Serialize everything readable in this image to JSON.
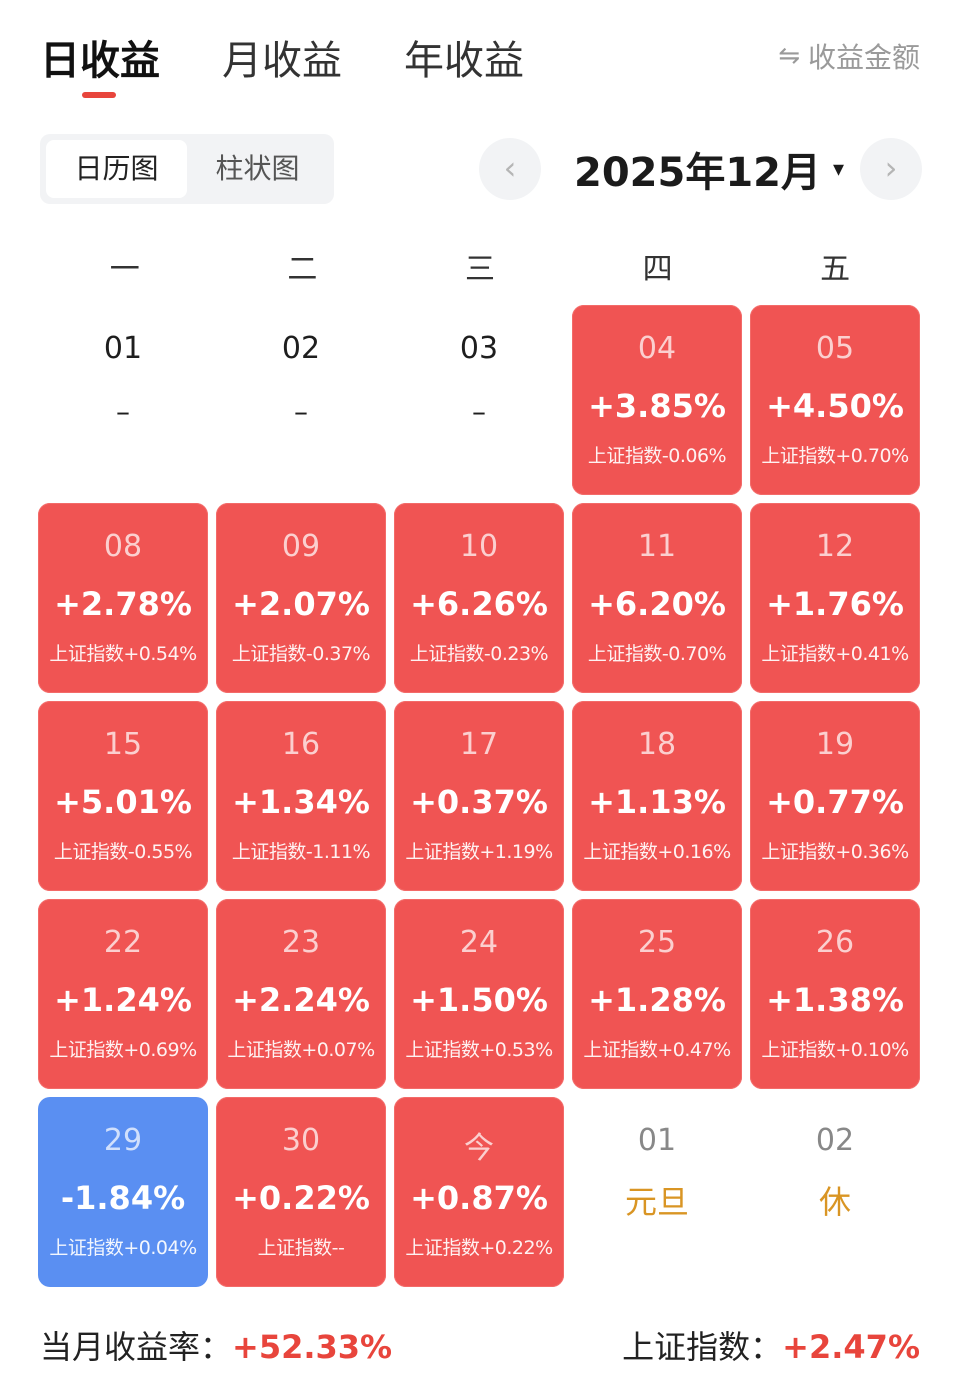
{
  "tabs": [
    {
      "label": "日收益",
      "active": true
    },
    {
      "label": "月收益",
      "active": false
    },
    {
      "label": "年收益",
      "active": false
    }
  ],
  "amount_toggle": {
    "icon": "swap-icon",
    "label": "收益金额"
  },
  "view_switch": [
    {
      "label": "日历图",
      "active": true
    },
    {
      "label": "柱状图",
      "active": false
    }
  ],
  "month": {
    "label": "2025年12月",
    "prev_icon": "‹",
    "next_icon": "›",
    "caret": "▾"
  },
  "weekdays": [
    "一",
    "二",
    "三",
    "四",
    "五"
  ],
  "cells": [
    {
      "date": "01",
      "type": "empty",
      "dash": "–"
    },
    {
      "date": "02",
      "type": "empty",
      "dash": "–"
    },
    {
      "date": "03",
      "type": "empty",
      "dash": "–"
    },
    {
      "date": "04",
      "type": "up",
      "ret": "+3.85%",
      "idx": "上证指数-0.06%"
    },
    {
      "date": "05",
      "type": "up",
      "ret": "+4.50%",
      "idx": "上证指数+0.70%"
    },
    {
      "date": "08",
      "type": "up",
      "ret": "+2.78%",
      "idx": "上证指数+0.54%"
    },
    {
      "date": "09",
      "type": "up",
      "ret": "+2.07%",
      "idx": "上证指数-0.37%"
    },
    {
      "date": "10",
      "type": "up",
      "ret": "+6.26%",
      "idx": "上证指数-0.23%"
    },
    {
      "date": "11",
      "type": "up",
      "ret": "+6.20%",
      "idx": "上证指数-0.70%"
    },
    {
      "date": "12",
      "type": "up",
      "ret": "+1.76%",
      "idx": "上证指数+0.41%"
    },
    {
      "date": "15",
      "type": "up",
      "ret": "+5.01%",
      "idx": "上证指数-0.55%"
    },
    {
      "date": "16",
      "type": "up",
      "ret": "+1.34%",
      "idx": "上证指数-1.11%"
    },
    {
      "date": "17",
      "type": "up",
      "ret": "+0.37%",
      "idx": "上证指数+1.19%"
    },
    {
      "date": "18",
      "type": "up",
      "ret": "+1.13%",
      "idx": "上证指数+0.16%"
    },
    {
      "date": "19",
      "type": "up",
      "ret": "+0.77%",
      "idx": "上证指数+0.36%"
    },
    {
      "date": "22",
      "type": "up",
      "ret": "+1.24%",
      "idx": "上证指数+0.69%"
    },
    {
      "date": "23",
      "type": "up",
      "ret": "+2.24%",
      "idx": "上证指数+0.07%"
    },
    {
      "date": "24",
      "type": "up",
      "ret": "+1.50%",
      "idx": "上证指数+0.53%"
    },
    {
      "date": "25",
      "type": "up",
      "ret": "+1.28%",
      "idx": "上证指数+0.47%"
    },
    {
      "date": "26",
      "type": "up",
      "ret": "+1.38%",
      "idx": "上证指数+0.10%"
    },
    {
      "date": "29",
      "type": "down",
      "ret": "-1.84%",
      "idx": "上证指数+0.04%"
    },
    {
      "date": "30",
      "type": "up",
      "ret": "+0.22%",
      "idx": "上证指数--"
    },
    {
      "date": "今",
      "type": "up",
      "ret": "+0.87%",
      "idx": "上证指数+0.22%"
    },
    {
      "date": "01",
      "type": "holiday",
      "hname": "元旦"
    },
    {
      "date": "02",
      "type": "holiday",
      "hname": "休"
    }
  ],
  "footer": {
    "left_label": "当月收益率：",
    "left_value": "+52.33%",
    "right_label": "上证指数：",
    "right_value": "+2.47%"
  },
  "colors": {
    "up": "#f05453",
    "down": "#5a8ff2",
    "accent": "#e8453c",
    "holiday": "#d99524"
  }
}
